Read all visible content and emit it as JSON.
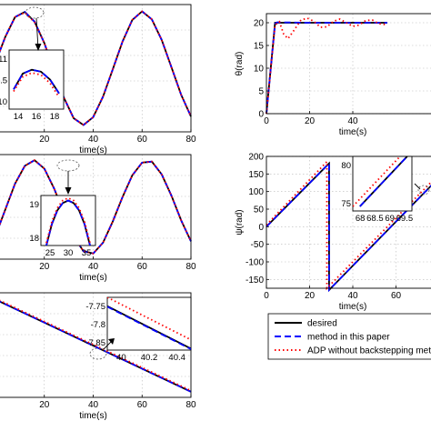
{
  "legend": {
    "entries": [
      {
        "label": "desired",
        "color": "#000000",
        "style": "solid"
      },
      {
        "label": "method in this paper",
        "color": "#0000ff",
        "style": "dashed"
      },
      {
        "label": "ADP without backstepping metho",
        "color": "#ff0000",
        "style": "dotted"
      }
    ]
  },
  "chart_data": [
    {
      "type": "line",
      "xlabel": "time(s)",
      "ylabel": "",
      "xlim": [
        0,
        80
      ],
      "xticks": [
        "20",
        "40",
        "60",
        "80"
      ],
      "grid": true,
      "series": [
        {
          "style": "solid",
          "color": "#000000",
          "x": [
            0,
            4,
            8,
            12,
            16,
            20,
            24,
            28,
            32,
            36,
            40,
            44,
            48,
            52,
            56,
            60,
            64,
            68,
            72,
            76,
            80
          ],
          "y": [
            0.1,
            0.55,
            0.9,
            0.99,
            0.82,
            0.44,
            -0.05,
            -0.52,
            -0.88,
            -1.0,
            -0.86,
            -0.5,
            -0.02,
            0.47,
            0.85,
            1.0,
            0.86,
            0.5,
            0.02,
            -0.47,
            -0.85
          ]
        },
        {
          "style": "dashed",
          "color": "#0000ff",
          "x": [
            0,
            4,
            8,
            12,
            16,
            20,
            24,
            28,
            32,
            36,
            40,
            44,
            48,
            52,
            56,
            60,
            64,
            68,
            72,
            76,
            80
          ],
          "y": [
            0.1,
            0.55,
            0.9,
            0.99,
            0.82,
            0.44,
            -0.05,
            -0.52,
            -0.88,
            -1.0,
            -0.86,
            -0.5,
            -0.02,
            0.47,
            0.85,
            1.0,
            0.86,
            0.5,
            0.02,
            -0.47,
            -0.85
          ]
        },
        {
          "style": "dotted",
          "color": "#ff0000",
          "x": [
            0,
            4,
            8,
            12,
            16,
            20,
            24,
            28,
            32,
            36,
            40,
            44,
            48,
            52,
            56,
            60,
            64,
            68,
            72,
            76,
            80
          ],
          "y": [
            0.1,
            0.55,
            0.9,
            0.98,
            0.81,
            0.44,
            -0.05,
            -0.52,
            -0.88,
            -1.0,
            -0.86,
            -0.5,
            -0.02,
            0.47,
            0.85,
            1.0,
            0.86,
            0.5,
            0.02,
            -0.47,
            -0.85
          ]
        }
      ],
      "inset": {
        "xlim": [
          13,
          19
        ],
        "ylim": [
          10,
          11.5
        ],
        "xticks": [
          "14",
          "16",
          "18"
        ],
        "yticks": [
          "11",
          ".5",
          "10"
        ],
        "series": [
          {
            "style": "solid",
            "color": "#000000",
            "x": [
              13.5,
              14.5,
              15.5,
              16.5,
              17.5,
              18.5
            ],
            "y": [
              10.5,
              10.9,
              11.0,
              10.95,
              10.75,
              10.4
            ]
          },
          {
            "style": "dashed",
            "color": "#0000ff",
            "x": [
              13.5,
              14.5,
              15.5,
              16.5,
              17.5,
              18.5
            ],
            "y": [
              10.5,
              10.9,
              11.0,
              10.95,
              10.75,
              10.4
            ]
          },
          {
            "style": "dotted",
            "color": "#ff0000",
            "x": [
              13.5,
              14.5,
              15.5,
              16.5,
              17.5,
              18.5
            ],
            "y": [
              10.45,
              10.82,
              10.92,
              10.87,
              10.66,
              10.3
            ]
          }
        ]
      }
    },
    {
      "type": "line",
      "xlabel": "time(s)",
      "ylabel": "θ(rad)",
      "xlim": [
        0,
        80
      ],
      "ylim": [
        0,
        22
      ],
      "xticks": [
        "0",
        "20",
        "40"
      ],
      "yticks": [
        "0",
        "5",
        "10",
        "15",
        "20"
      ],
      "grid": true,
      "series": [
        {
          "style": "solid",
          "color": "#000000",
          "x": [
            0,
            4,
            5,
            20,
            40,
            56
          ],
          "y": [
            0,
            20,
            20,
            20,
            20,
            20
          ]
        },
        {
          "style": "dashed",
          "color": "#0000ff",
          "x": [
            0,
            4,
            5,
            20,
            40,
            56
          ],
          "y": [
            0,
            19.8,
            20.1,
            20,
            20,
            20
          ]
        },
        {
          "style": "dotted",
          "color": "#ff0000",
          "x": [
            0,
            4,
            6,
            8,
            10,
            13,
            16,
            19,
            22,
            25,
            28,
            31,
            34,
            37,
            40,
            43,
            46,
            49,
            52,
            55
          ],
          "y": [
            0,
            19.5,
            20.2,
            17.5,
            16.5,
            18.5,
            20.6,
            21.0,
            20.3,
            19.0,
            19.1,
            20.3,
            20.8,
            20.0,
            19.2,
            19.5,
            20.5,
            20.6,
            19.8,
            19.6
          ]
        }
      ]
    },
    {
      "type": "line",
      "xlabel": "time(s)",
      "ylabel": "",
      "xlim": [
        0,
        80
      ],
      "xticks": [
        "20",
        "40",
        "60",
        "80"
      ],
      "grid": true,
      "series": [
        {
          "style": "solid",
          "color": "#000000",
          "x": [
            0,
            4,
            8,
            12,
            16,
            20,
            24,
            28,
            32,
            36,
            40,
            44,
            48,
            52,
            56,
            60,
            64,
            68,
            72,
            76,
            80
          ],
          "y": [
            -0.6,
            -0.05,
            0.5,
            0.88,
            1.0,
            0.82,
            0.4,
            -0.12,
            -0.62,
            -0.93,
            -0.98,
            -0.75,
            -0.3,
            0.22,
            0.68,
            0.95,
            0.97,
            0.7,
            0.25,
            -0.28,
            -0.72
          ]
        },
        {
          "style": "dashed",
          "color": "#0000ff",
          "x": [
            0,
            4,
            8,
            12,
            16,
            20,
            24,
            28,
            32,
            36,
            40,
            44,
            48,
            52,
            56,
            60,
            64,
            68,
            72,
            76,
            80
          ],
          "y": [
            -0.6,
            -0.05,
            0.5,
            0.88,
            1.0,
            0.82,
            0.4,
            -0.12,
            -0.62,
            -0.93,
            -0.98,
            -0.75,
            -0.3,
            0.22,
            0.68,
            0.95,
            0.97,
            0.7,
            0.25,
            -0.28,
            -0.72
          ]
        },
        {
          "style": "dotted",
          "color": "#ff0000",
          "x": [
            0,
            4,
            8,
            12,
            16,
            20,
            24,
            28,
            32,
            36,
            40,
            44,
            48,
            52,
            56,
            60,
            64,
            68,
            72,
            76,
            80
          ],
          "y": [
            -0.6,
            -0.05,
            0.5,
            0.88,
            1.0,
            0.82,
            0.4,
            -0.12,
            -0.62,
            -0.93,
            -0.98,
            -0.75,
            -0.3,
            0.22,
            0.68,
            0.95,
            0.97,
            0.7,
            0.25,
            -0.28,
            -0.72
          ]
        }
      ],
      "inset": {
        "xlim": [
          25,
          35
        ],
        "ylim": [
          17.7,
          19.7
        ],
        "xticks": [
          "25",
          "30",
          "35"
        ],
        "yticks": [
          "19",
          "18"
        ],
        "series": [
          {
            "style": "solid",
            "color": "#000000",
            "x": [
              26,
              27,
              28,
              29,
              30,
              31,
              32,
              33,
              34
            ],
            "y": [
              17.7,
              18.55,
              19.1,
              19.4,
              19.5,
              19.4,
              19.1,
              18.55,
              17.7
            ]
          },
          {
            "style": "dashed",
            "color": "#0000ff",
            "x": [
              26,
              27,
              28,
              29,
              30,
              31,
              32,
              33,
              34
            ],
            "y": [
              17.7,
              18.55,
              19.1,
              19.4,
              19.5,
              19.4,
              19.1,
              18.55,
              17.7
            ]
          },
          {
            "style": "dotted",
            "color": "#ff0000",
            "x": [
              26,
              27,
              28,
              29,
              30,
              31,
              32,
              33,
              34
            ],
            "y": [
              17.8,
              18.65,
              19.2,
              19.5,
              19.6,
              19.5,
              19.2,
              18.65,
              17.8
            ]
          }
        ]
      }
    },
    {
      "type": "line",
      "xlabel": "time(s)",
      "ylabel": "ψ(rad)",
      "xlim": [
        0,
        80
      ],
      "ylim": [
        -175,
        200
      ],
      "xticks": [
        "0",
        "20",
        "40",
        "60"
      ],
      "yticks": [
        "200",
        "150",
        "100",
        "50",
        "0",
        "-50",
        "-100",
        "-150"
      ],
      "grid": true,
      "series": [
        {
          "style": "solid",
          "color": "#000000",
          "x": [
            0,
            29,
            29,
            80
          ],
          "y": [
            0,
            180,
            -180,
            140
          ]
        },
        {
          "style": "dashed",
          "color": "#0000ff",
          "x": [
            0,
            29,
            29,
            80
          ],
          "y": [
            0,
            180,
            -180,
            140
          ]
        },
        {
          "style": "dotted",
          "color": "#ff0000",
          "x": [
            0,
            28,
            28,
            80
          ],
          "y": [
            5,
            185,
            -175,
            150
          ]
        }
      ],
      "inset": {
        "xlim": [
          68,
          70.5
        ],
        "ylim": [
          72,
          84
        ],
        "xticks": [
          "68",
          "68.5",
          "69",
          "69.5"
        ],
        "yticks": [
          "80",
          "75"
        ],
        "series": [
          {
            "style": "solid",
            "color": "#000000",
            "x": [
              68.3,
              70.3
            ],
            "y": [
              73,
              84
            ]
          },
          {
            "style": "dashed",
            "color": "#0000ff",
            "x": [
              68.3,
              70.3
            ],
            "y": [
              73,
              84
            ]
          },
          {
            "style": "dotted",
            "color": "#ff0000",
            "x": [
              68.0,
              70.0
            ],
            "y": [
              73,
              84
            ]
          }
        ]
      }
    },
    {
      "type": "line",
      "xlabel": "time(s)",
      "ylabel": "",
      "xlim": [
        0,
        80
      ],
      "xticks": [
        "20",
        "40",
        "60",
        "80"
      ],
      "grid": true,
      "series": [
        {
          "style": "solid",
          "color": "#000000",
          "x": [
            0,
            80
          ],
          "y": [
            0.65,
            -0.95
          ]
        },
        {
          "style": "dashed",
          "color": "#0000ff",
          "x": [
            0,
            80
          ],
          "y": [
            0.65,
            -0.95
          ]
        },
        {
          "style": "dotted",
          "color": "#ff0000",
          "x": [
            0,
            80
          ],
          "y": [
            0.67,
            -0.93
          ]
        }
      ],
      "inset": {
        "xlim": [
          39.7,
          40.5
        ],
        "ylim": [
          -7.9,
          -7.72
        ],
        "xticks": [
          "40",
          "40.2",
          "40.4"
        ],
        "yticks": [
          "-7.75",
          "-7.8",
          "-7.85"
        ],
        "series": [
          {
            "style": "solid",
            "color": "#000000",
            "x": [
              39.7,
              40.5
            ],
            "y": [
              -7.75,
              -7.895
            ]
          },
          {
            "style": "dashed",
            "color": "#0000ff",
            "x": [
              39.7,
              40.5
            ],
            "y": [
              -7.752,
              -7.897
            ]
          },
          {
            "style": "dotted",
            "color": "#ff0000",
            "x": [
              39.7,
              40.5
            ],
            "y": [
              -7.72,
              -7.865
            ]
          }
        ]
      }
    }
  ]
}
